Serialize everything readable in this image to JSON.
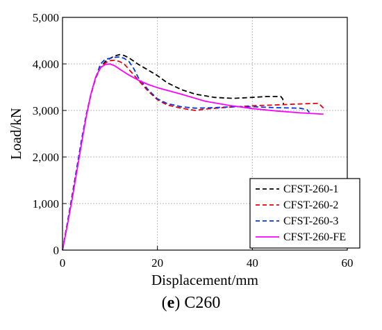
{
  "chart_data": {
    "type": "line",
    "xlabel": "Displacement/mm",
    "ylabel": "Load/kN",
    "xlim": [
      0,
      60
    ],
    "ylim": [
      0,
      5000
    ],
    "xticks": [
      0,
      20,
      40,
      60
    ],
    "yticks": [
      0,
      1000,
      2000,
      3000,
      4000,
      5000
    ],
    "xtick_labels": [
      "0",
      "20",
      "40",
      "60"
    ],
    "ytick_labels": [
      "0",
      "1,000",
      "2,000",
      "3,000",
      "4,000",
      "5,000"
    ],
    "grid": true,
    "legend_position": "bottom-right",
    "series": [
      {
        "name": "CFST-260-1",
        "color": "#000000",
        "dash": "dashed",
        "x": [
          0,
          1,
          2,
          3,
          4,
          5,
          6,
          7,
          8,
          9,
          10,
          11,
          12,
          13,
          14,
          15,
          16,
          18,
          20,
          22,
          25,
          28,
          32,
          36,
          40,
          43,
          46,
          46.4,
          46.6
        ],
        "y": [
          0,
          560,
          1150,
          1750,
          2350,
          2900,
          3350,
          3700,
          3920,
          4050,
          4120,
          4170,
          4200,
          4180,
          4130,
          4060,
          3990,
          3870,
          3750,
          3600,
          3450,
          3350,
          3280,
          3260,
          3280,
          3300,
          3300,
          3250,
          3120
        ]
      },
      {
        "name": "CFST-260-2",
        "color": "#e8000b",
        "dash": "dashed",
        "x": [
          0,
          1,
          2,
          3,
          4,
          5,
          6,
          7,
          8,
          9,
          10,
          11,
          12,
          13,
          14,
          16,
          18,
          20,
          22,
          25,
          28,
          30,
          35,
          40,
          45,
          50,
          53,
          54,
          55
        ],
        "y": [
          0,
          560,
          1150,
          1750,
          2350,
          2900,
          3350,
          3700,
          3920,
          4020,
          4070,
          4080,
          4050,
          4000,
          3880,
          3650,
          3420,
          3230,
          3120,
          3050,
          3000,
          3030,
          3070,
          3100,
          3120,
          3140,
          3150,
          3150,
          3050
        ]
      },
      {
        "name": "CFST-260-3",
        "color": "#0033ee",
        "dash": "dashed",
        "x": [
          0,
          1,
          2,
          3,
          4,
          5,
          6,
          7,
          8,
          9,
          10,
          11,
          12,
          13,
          14,
          15,
          16,
          18,
          20,
          22,
          25,
          28,
          32,
          36,
          40,
          45,
          50,
          51.5,
          52
        ],
        "y": [
          0,
          560,
          1150,
          1750,
          2350,
          2900,
          3350,
          3700,
          4000,
          4100,
          4120,
          4140,
          4150,
          4120,
          4050,
          3900,
          3700,
          3450,
          3250,
          3150,
          3080,
          3050,
          3060,
          3080,
          3080,
          3060,
          3050,
          3020,
          2960
        ]
      },
      {
        "name": "CFST-260-FE",
        "color": "#ff00ff",
        "dash": "solid",
        "x": [
          0,
          1,
          2,
          3,
          4,
          5,
          6,
          7,
          8,
          9,
          10,
          11,
          12,
          14,
          16,
          18,
          20,
          25,
          30,
          35,
          40,
          45,
          50,
          55
        ],
        "y": [
          0,
          520,
          1080,
          1680,
          2280,
          2870,
          3360,
          3720,
          3920,
          3990,
          4000,
          3960,
          3890,
          3760,
          3650,
          3560,
          3490,
          3350,
          3200,
          3110,
          3040,
          2990,
          2950,
          2920
        ]
      }
    ]
  },
  "caption": {
    "letter": "e",
    "text": "C260"
  }
}
